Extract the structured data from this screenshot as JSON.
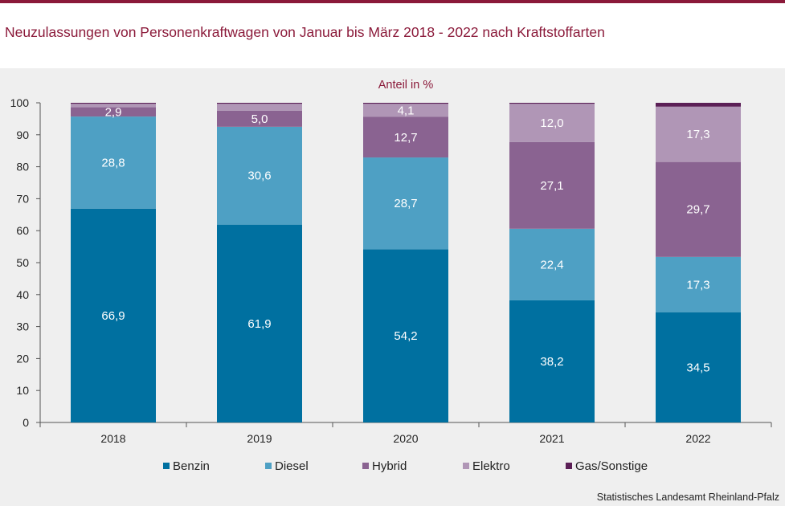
{
  "title": "Neuzulassungen von Personenkraftwagen von Januar bis März 2018 - 2022 nach Kraftstoffarten",
  "source": "Statistisches Landesamt Rheinland-Pfalz",
  "chart_data": {
    "type": "bar",
    "stacked": true,
    "title": "Neuzulassungen von Personenkraftwagen von Januar bis März 2018 - 2022 nach Kraftstoffarten",
    "ylabel": "Anteil in %",
    "ylim": [
      0,
      100
    ],
    "yticks": [
      0,
      10,
      20,
      30,
      40,
      50,
      60,
      70,
      80,
      90,
      100
    ],
    "categories": [
      "2018",
      "2019",
      "2020",
      "2021",
      "2022"
    ],
    "legend_position": "bottom",
    "series": [
      {
        "name": "Benzin",
        "color": "#0070a0",
        "values": [
          66.9,
          61.9,
          54.2,
          38.2,
          34.5
        ],
        "labels": [
          "66,9",
          "61,9",
          "54,2",
          "38,2",
          "34,5"
        ]
      },
      {
        "name": "Diesel",
        "color": "#4ea0c4",
        "values": [
          28.8,
          30.6,
          28.7,
          22.4,
          17.3
        ],
        "labels": [
          "28,8",
          "30,6",
          "28,7",
          "22,4",
          "17,3"
        ]
      },
      {
        "name": "Hybrid",
        "color": "#8a6391",
        "values": [
          2.9,
          5.0,
          12.7,
          27.1,
          29.7
        ],
        "labels": [
          "2,9",
          "5,0",
          "12,7",
          "27,1",
          "29,7"
        ]
      },
      {
        "name": "Elektro",
        "color": "#b096b6",
        "values": [
          1.1,
          2.2,
          4.1,
          12.0,
          17.3
        ],
        "labels": [
          "",
          "",
          "4,1",
          "12,0",
          "17,3"
        ]
      },
      {
        "name": "Gas/Sonstige",
        "color": "#5b1f56",
        "values": [
          0.3,
          0.3,
          0.3,
          0.3,
          1.2
        ],
        "labels": [
          "",
          "",
          "",
          "",
          ""
        ]
      }
    ]
  }
}
